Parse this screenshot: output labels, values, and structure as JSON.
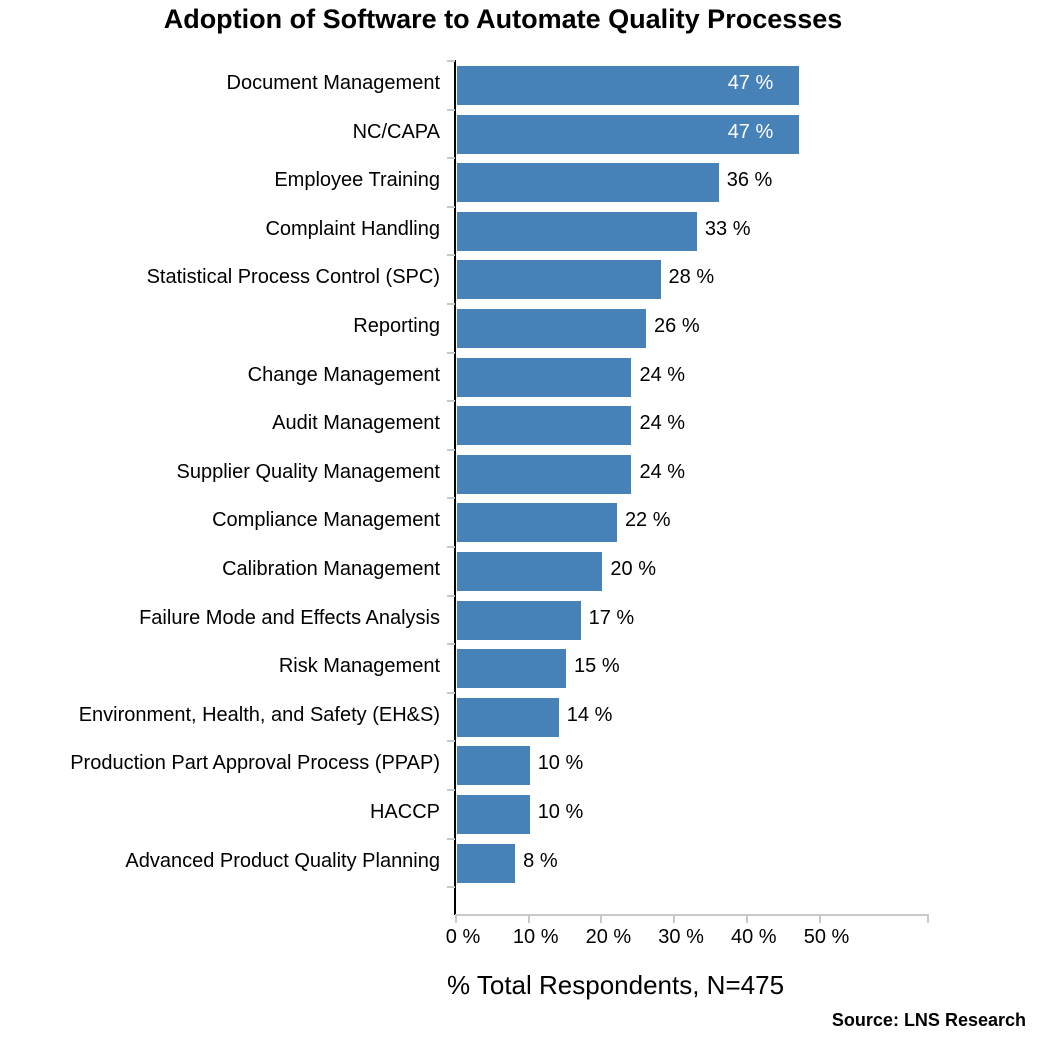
{
  "chart_data": {
    "type": "bar",
    "orientation": "horizontal",
    "title": "Adoption of Software to Automate Quality Processes",
    "xlabel": "% Total Respondents, N=475",
    "ylabel": "",
    "xlim": [
      0,
      65
    ],
    "xticks": [
      "0 %",
      "10 %",
      "20 %",
      "30 %",
      "40 %",
      "50 %"
    ],
    "grid": false,
    "legend": null,
    "bar_color": "#4682b8",
    "categories": [
      "Document Management",
      "NC/CAPA",
      "Employee Training",
      "Complaint Handling",
      "Statistical Process Control (SPC)",
      "Reporting",
      "Change Management",
      "Audit Management",
      "Supplier Quality Management",
      "Compliance Management",
      "Calibration Management",
      "Failure Mode and Effects Analysis",
      "Risk Management",
      "Environment, Health, and Safety (EH&S)",
      "Production Part Approval Process (PPAP)",
      "HACCP",
      "Advanced Product Quality Planning"
    ],
    "values": [
      47,
      47,
      36,
      33,
      28,
      26,
      24,
      24,
      24,
      22,
      20,
      17,
      15,
      14,
      10,
      10,
      8
    ],
    "value_labels": [
      "47 %",
      "47 %",
      "36 %",
      "33 %",
      "28 %",
      "26 %",
      "24 %",
      "24 %",
      "24 %",
      "22 %",
      "20 %",
      "17 %",
      "15 %",
      "14 %",
      "10 %",
      "10 %",
      "8 %"
    ],
    "annotations": [
      "Source: LNS Research"
    ]
  },
  "title": "Adoption of Software to Automate Quality Processes",
  "xlabel": "% Total Respondents, N=475",
  "source": "Source: LNS Research"
}
